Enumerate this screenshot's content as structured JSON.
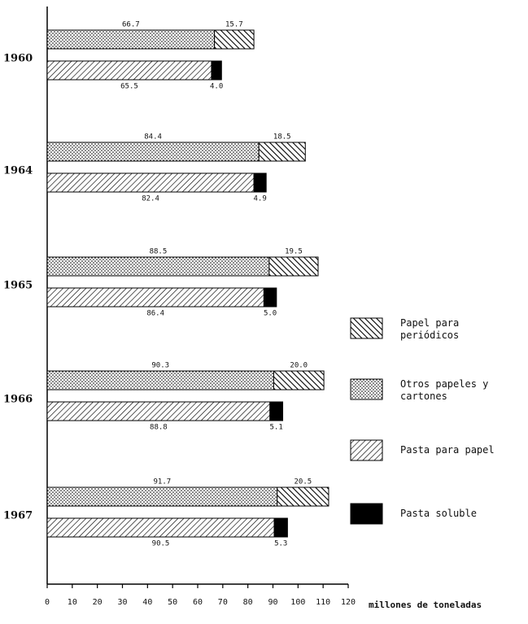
{
  "chart_data": {
    "type": "stacked-bar-horizontal",
    "categories": [
      "1960",
      "1964",
      "1965",
      "1966",
      "1967"
    ],
    "stacks": [
      [
        {
          "name": "Otros papeles y cartones",
          "pattern": "dots",
          "color": "#000000",
          "values": [
            66.7,
            84.4,
            88.5,
            90.3,
            91.7
          ],
          "value_labels": [
            "66.7",
            "84.4",
            "88.5",
            "90.3",
            "91.7"
          ]
        },
        {
          "name": "Papel para periódicos",
          "pattern": "crosshatch",
          "color": "#000000",
          "values": [
            15.7,
            18.5,
            19.5,
            20.0,
            20.5
          ],
          "value_labels": [
            "15.7",
            "18.5",
            "19.5",
            "20.0",
            "20.5"
          ]
        }
      ],
      [
        {
          "name": "Pasta para papel",
          "pattern": "diagonal",
          "color": "#000000",
          "values": [
            65.5,
            82.4,
            86.4,
            88.8,
            90.5
          ],
          "value_labels": [
            "65.5",
            "82.4",
            "86.4",
            "88.8",
            "90.5"
          ]
        },
        {
          "name": "Pasta soluble",
          "pattern": "solid",
          "color": "#000000",
          "values": [
            4.0,
            4.9,
            5.0,
            5.1,
            5.3
          ],
          "value_labels": [
            "4.0",
            "4.9",
            "5.0",
            "5.1",
            "5.3"
          ]
        }
      ]
    ],
    "x_label": "millones de toneladas",
    "xlim": [
      0,
      120
    ],
    "xticks": [
      0,
      10,
      20,
      30,
      40,
      50,
      60,
      70,
      80,
      90,
      100,
      110,
      120
    ],
    "legend": "right"
  }
}
